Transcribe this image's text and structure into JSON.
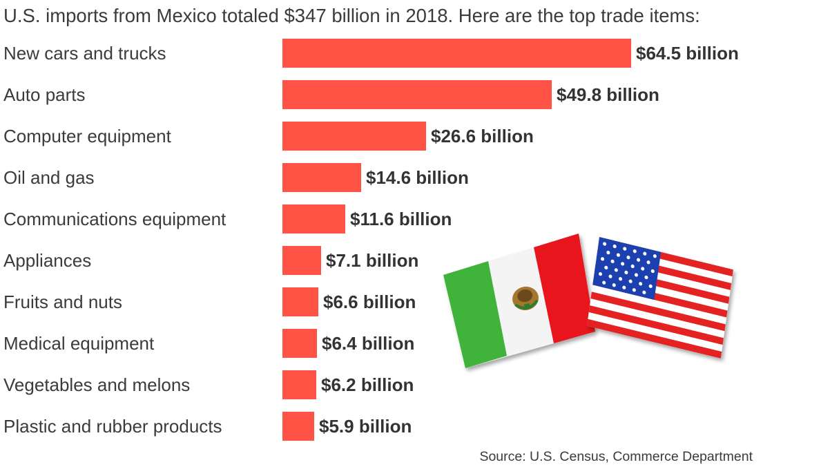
{
  "chart_data": {
    "type": "bar",
    "orientation": "horizontal",
    "title": "U.S. imports from Mexico totaled $347 billion in 2018. Here are the top trade items:",
    "categories": [
      "New cars and trucks",
      "Auto parts",
      "Computer equipment",
      "Oil and gas",
      "Communications equipment",
      "Appliances",
      "Fruits and nuts",
      "Medical equipment",
      "Vegetables and melons",
      "Plastic and rubber products"
    ],
    "values": [
      64.5,
      49.8,
      26.6,
      14.6,
      11.6,
      7.1,
      6.6,
      6.4,
      6.2,
      5.9
    ],
    "value_labels": [
      "$64.5 billion",
      "$49.8 billion",
      "$26.6 billion",
      "$14.6 billion",
      "$11.6 billion",
      "$7.1 billion",
      "$6.6 billion",
      "$6.4 billion",
      "$6.2 billion",
      "$5.9 billion"
    ],
    "bar_color": "#ff5445",
    "xlim": [
      0,
      64.5
    ],
    "grid": false,
    "legend": "none",
    "source": "Source: U.S. Census, Commerce Department"
  },
  "illustration": {
    "icons": [
      "mexico-flag-icon",
      "usa-flag-icon"
    ],
    "colors": {
      "mexico_green": "#3fb33a",
      "mexico_red": "#e8141b",
      "usa_red": "#e42222",
      "usa_blue": "#1f3fb0"
    }
  }
}
